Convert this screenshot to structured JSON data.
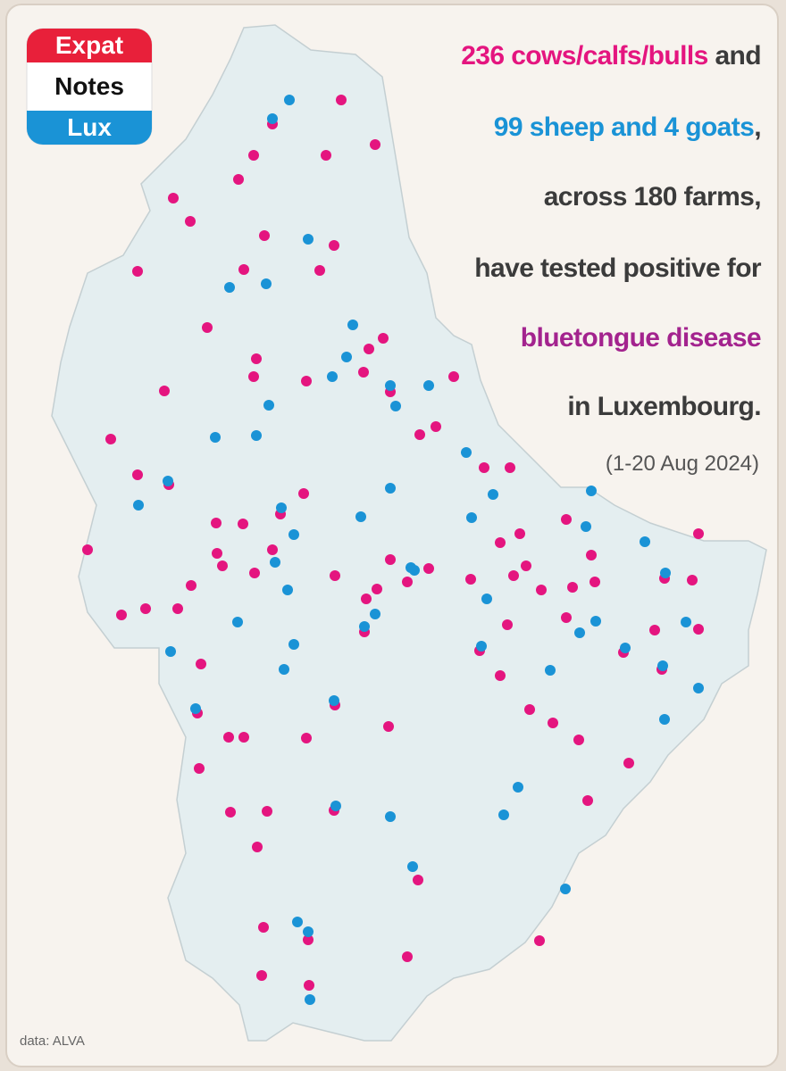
{
  "logo": {
    "lines": [
      "Expat",
      "Notes",
      "Lux"
    ]
  },
  "headline": {
    "lines": [
      [
        "236 cows/calfs/bulls",
        "and"
      ],
      [
        "99 sheep and 4 goats",
        ","
      ],
      [
        "across 180 farms,"
      ],
      [
        "have tested positive for"
      ],
      [
        "bluetongue disease"
      ],
      [
        "in Luxembourg."
      ]
    ]
  },
  "period": "(1-20 Aug 2024)",
  "source": "data: ALVA"
}
